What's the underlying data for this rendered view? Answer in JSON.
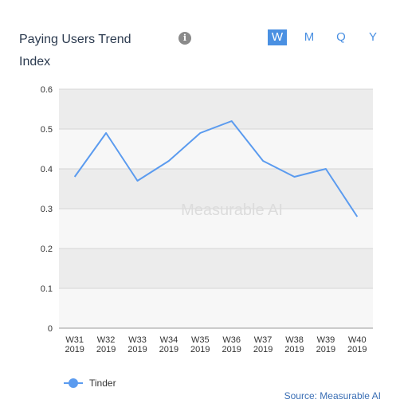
{
  "header": {
    "title": "Paying Users Trend Index",
    "info_icon": "info-icon",
    "periods": [
      "W",
      "M",
      "Q",
      "Y"
    ],
    "active_period": "W"
  },
  "watermark": "Measurable AI",
  "legend": {
    "label": "Tinder"
  },
  "source": "Source: Measurable AI",
  "colors": {
    "series": "#5b9bef",
    "accent": "#4a90e2",
    "band_dark": "#ececec",
    "band_light": "#f7f7f7"
  },
  "chart_data": {
    "type": "line",
    "title": "",
    "xlabel": "",
    "ylabel": "",
    "categories": [
      [
        "W31",
        "2019"
      ],
      [
        "W32",
        "2019"
      ],
      [
        "W33",
        "2019"
      ],
      [
        "W34",
        "2019"
      ],
      [
        "W35",
        "2019"
      ],
      [
        "W36",
        "2019"
      ],
      [
        "W37",
        "2019"
      ],
      [
        "W38",
        "2019"
      ],
      [
        "W39",
        "2019"
      ],
      [
        "W40",
        "2019"
      ]
    ],
    "series": [
      {
        "name": "Tinder",
        "values": [
          0.38,
          0.49,
          0.37,
          0.42,
          0.49,
          0.52,
          0.42,
          0.38,
          0.4,
          0.28
        ]
      }
    ],
    "ylim": [
      0,
      0.6
    ],
    "yticks": [
      "0",
      "0.1",
      "0.2",
      "0.3",
      "0.4",
      "0.5",
      "0.6"
    ],
    "grid": true,
    "legend_position": "bottom-left"
  }
}
